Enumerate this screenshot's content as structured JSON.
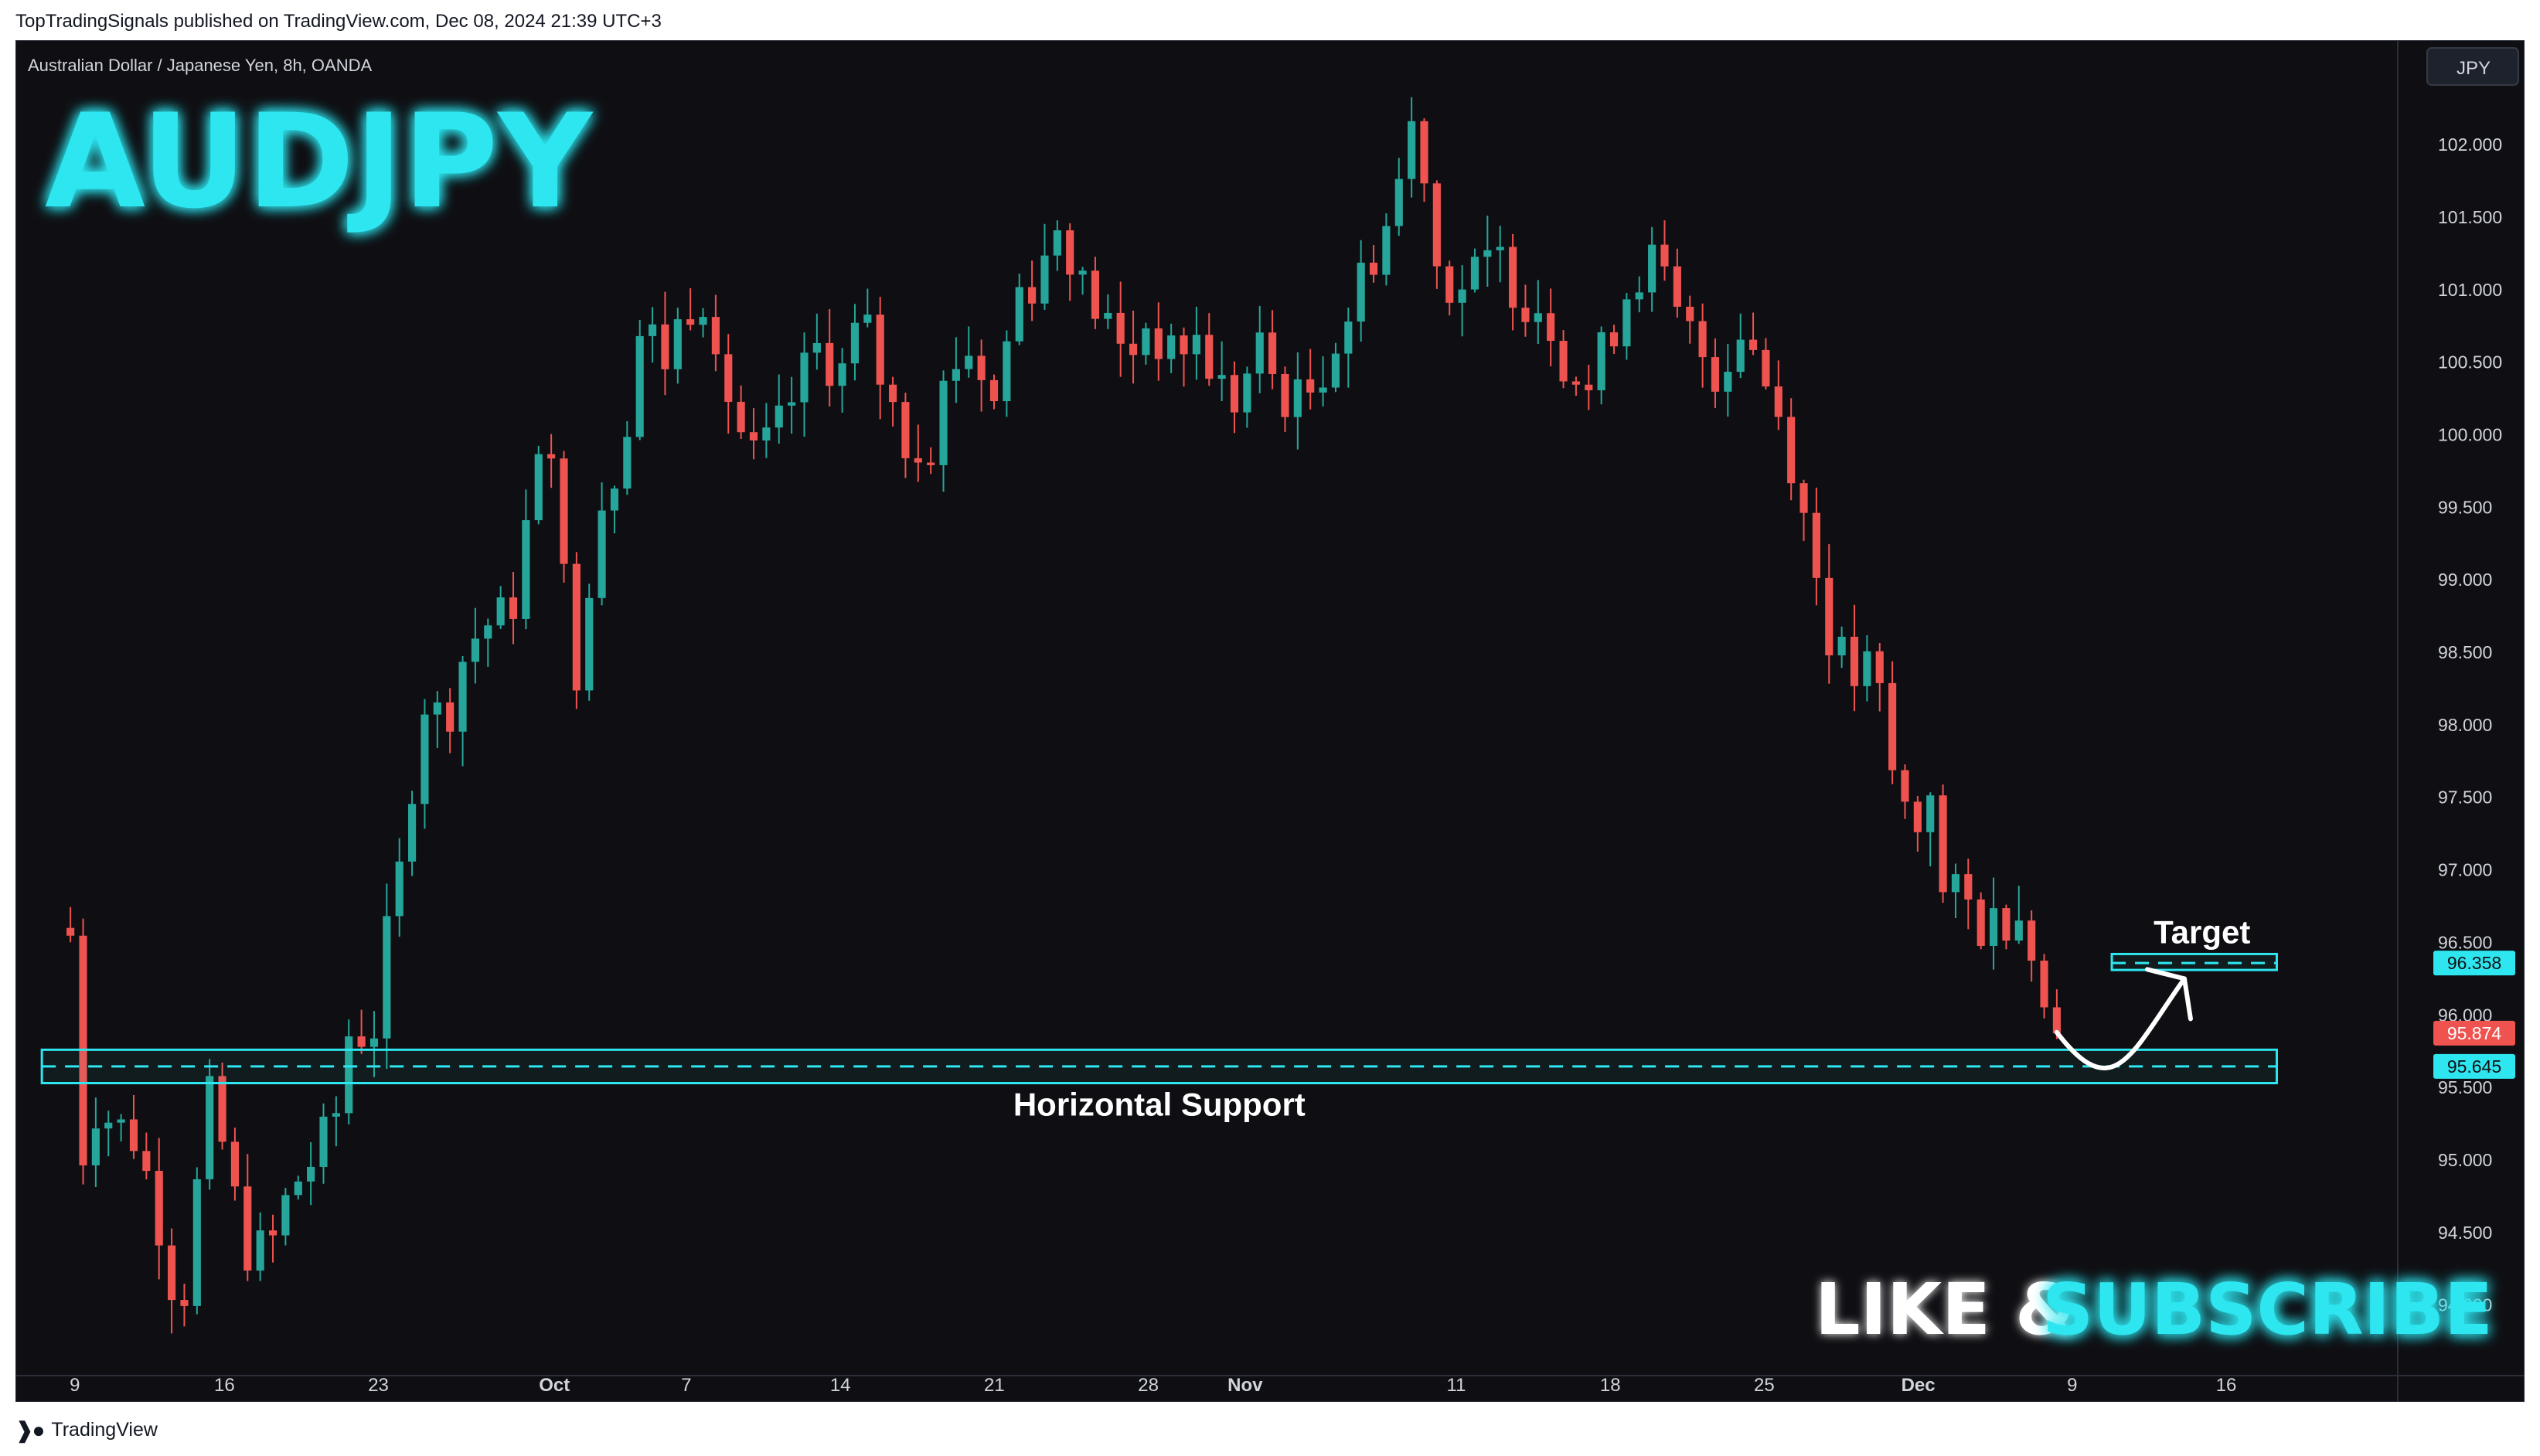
{
  "header": {
    "publish_line": "TopTradingSignals published on TradingView.com, Dec 08, 2024 21:39 UTC+3"
  },
  "footer": {
    "brand": "TradingView"
  },
  "colors": {
    "background": "#0f0f13",
    "bull": "#26a69a",
    "bear": "#ef5350",
    "accent": "#2ee6f0",
    "text": "#d1d4dc"
  },
  "icons": {
    "footer": "tradingview-logo-icon"
  },
  "chart_data": {
    "type": "candlestick",
    "instrument_label": "Australian Dollar / Japanese Yen, 8h, OANDA",
    "big_title": "AUDJPY",
    "currency_button": "JPY",
    "cta": {
      "part1": "LIKE &",
      "part2": "SUBSCRIBE"
    },
    "y_ticks": [
      "102.000",
      "101.500",
      "101.000",
      "100.500",
      "100.000",
      "99.500",
      "99.000",
      "98.500",
      "98.000",
      "97.500",
      "97.000",
      "96.500",
      "96.000",
      "95.500",
      "95.000",
      "94.500",
      "94.000"
    ],
    "ylim": [
      93.62,
      102.4
    ],
    "x_ticks": [
      {
        "label": "9",
        "x": 0.2,
        "bold": false
      },
      {
        "label": "16",
        "x": 7,
        "bold": false
      },
      {
        "label": "23",
        "x": 14,
        "bold": false
      },
      {
        "label": "Oct",
        "x": 22,
        "bold": true
      },
      {
        "label": "7",
        "x": 28,
        "bold": false
      },
      {
        "label": "14",
        "x": 35,
        "bold": false
      },
      {
        "label": "21",
        "x": 42,
        "bold": false
      },
      {
        "label": "28",
        "x": 49,
        "bold": false
      },
      {
        "label": "Nov",
        "x": 53.4,
        "bold": true
      },
      {
        "label": "11",
        "x": 63,
        "bold": false
      },
      {
        "label": "18",
        "x": 70,
        "bold": false
      },
      {
        "label": "25",
        "x": 77,
        "bold": false
      },
      {
        "label": "Dec",
        "x": 84,
        "bold": true
      },
      {
        "label": "9",
        "x": 91,
        "bold": false
      },
      {
        "label": "16",
        "x": 98,
        "bold": false
      }
    ],
    "xlim": [
      -2.5,
      105.8
    ],
    "price_labels": [
      {
        "value": 96.358,
        "text": "96.358",
        "style": "cyan"
      },
      {
        "value": 95.874,
        "text": "95.874",
        "style": "red"
      },
      {
        "value": 95.645,
        "text": "95.645",
        "style": "cyan"
      }
    ],
    "annotations": {
      "support_label": "Horizontal Support",
      "support_level": 95.645,
      "support_band": [
        95.53,
        95.76
      ],
      "support_range_x": [
        -1.3,
        100.3
      ],
      "target_label": "Target",
      "target_level": 96.358,
      "target_band": [
        96.31,
        96.42
      ],
      "target_range_x": [
        92.8,
        100.3
      ],
      "arrow_points": [
        [
          90.3,
          95.88
        ],
        [
          92.9,
          95.58
        ],
        [
          95.1,
          95.95
        ],
        [
          96.1,
          96.25
        ]
      ]
    },
    "anchors": [
      [
        0,
        96.55
      ],
      [
        0.5,
        95.0
      ],
      [
        1,
        95.4
      ],
      [
        2,
        95.25
      ],
      [
        3,
        95.15
      ],
      [
        4,
        94.6
      ],
      [
        5,
        93.9
      ],
      [
        6,
        95.1
      ],
      [
        6.5,
        95.55
      ],
      [
        7,
        95.0
      ],
      [
        8,
        94.4
      ],
      [
        9,
        94.35
      ],
      [
        10,
        94.8
      ],
      [
        11,
        95.0
      ],
      [
        12,
        95.25
      ],
      [
        13,
        96.2
      ],
      [
        13.5,
        95.5
      ],
      [
        14,
        96.2
      ],
      [
        15,
        97.0
      ],
      [
        16,
        98.2
      ],
      [
        17,
        98.0
      ],
      [
        18,
        98.55
      ],
      [
        19,
        98.7
      ],
      [
        20,
        98.75
      ],
      [
        21,
        99.6
      ],
      [
        22,
        100.1
      ],
      [
        22.5,
        98.8
      ],
      [
        23,
        98.4
      ],
      [
        24,
        99.5
      ],
      [
        25,
        99.85
      ],
      [
        26,
        100.8
      ],
      [
        27,
        100.5
      ],
      [
        28,
        100.9
      ],
      [
        29,
        101.0
      ],
      [
        30,
        100.2
      ],
      [
        31,
        99.8
      ],
      [
        32,
        99.95
      ],
      [
        33,
        100.3
      ],
      [
        34,
        100.6
      ],
      [
        35,
        100.4
      ],
      [
        36,
        100.8
      ],
      [
        37,
        100.3
      ],
      [
        38,
        99.95
      ],
      [
        39,
        99.9
      ],
      [
        40,
        100.5
      ],
      [
        41,
        100.6
      ],
      [
        42,
        100.2
      ],
      [
        43,
        101.0
      ],
      [
        44,
        101.1
      ],
      [
        45,
        101.5
      ],
      [
        46,
        101.0
      ],
      [
        47,
        100.8
      ],
      [
        48,
        100.5
      ],
      [
        49,
        100.8
      ],
      [
        50,
        100.5
      ],
      [
        51,
        100.7
      ],
      [
        52,
        100.4
      ],
      [
        53,
        100.2
      ],
      [
        54,
        100.6
      ],
      [
        55,
        100.3
      ],
      [
        56,
        100.2
      ],
      [
        57,
        100.5
      ],
      [
        58,
        100.8
      ],
      [
        59,
        101.2
      ],
      [
        60,
        101.5
      ],
      [
        61,
        102.15
      ],
      [
        61.5,
        101.95
      ],
      [
        62,
        101.2
      ],
      [
        63,
        101.0
      ],
      [
        64,
        101.1
      ],
      [
        65,
        101.2
      ],
      [
        66,
        100.95
      ],
      [
        67,
        100.9
      ],
      [
        68,
        100.5
      ],
      [
        69,
        100.3
      ],
      [
        70,
        100.7
      ],
      [
        71,
        101.1
      ],
      [
        72,
        101.2
      ],
      [
        73,
        100.8
      ],
      [
        74,
        100.6
      ],
      [
        75,
        100.4
      ],
      [
        76,
        100.8
      ],
      [
        77,
        100.4
      ],
      [
        78,
        100.0
      ],
      [
        79,
        99.3
      ],
      [
        80,
        98.6
      ],
      [
        81,
        98.3
      ],
      [
        82,
        98.4
      ],
      [
        83,
        97.5
      ],
      [
        84,
        97.3
      ],
      [
        84.5,
        97.7
      ],
      [
        85,
        96.8
      ],
      [
        86,
        96.8
      ],
      [
        87,
        96.6
      ],
      [
        88,
        96.7
      ],
      [
        89,
        96.75
      ],
      [
        89.5,
        96.1
      ],
      [
        90,
        95.9
      ],
      [
        90.3,
        95.874
      ]
    ],
    "candle_count": 158,
    "candle_range": [
      0,
      90.3
    ],
    "seed": 7
  }
}
